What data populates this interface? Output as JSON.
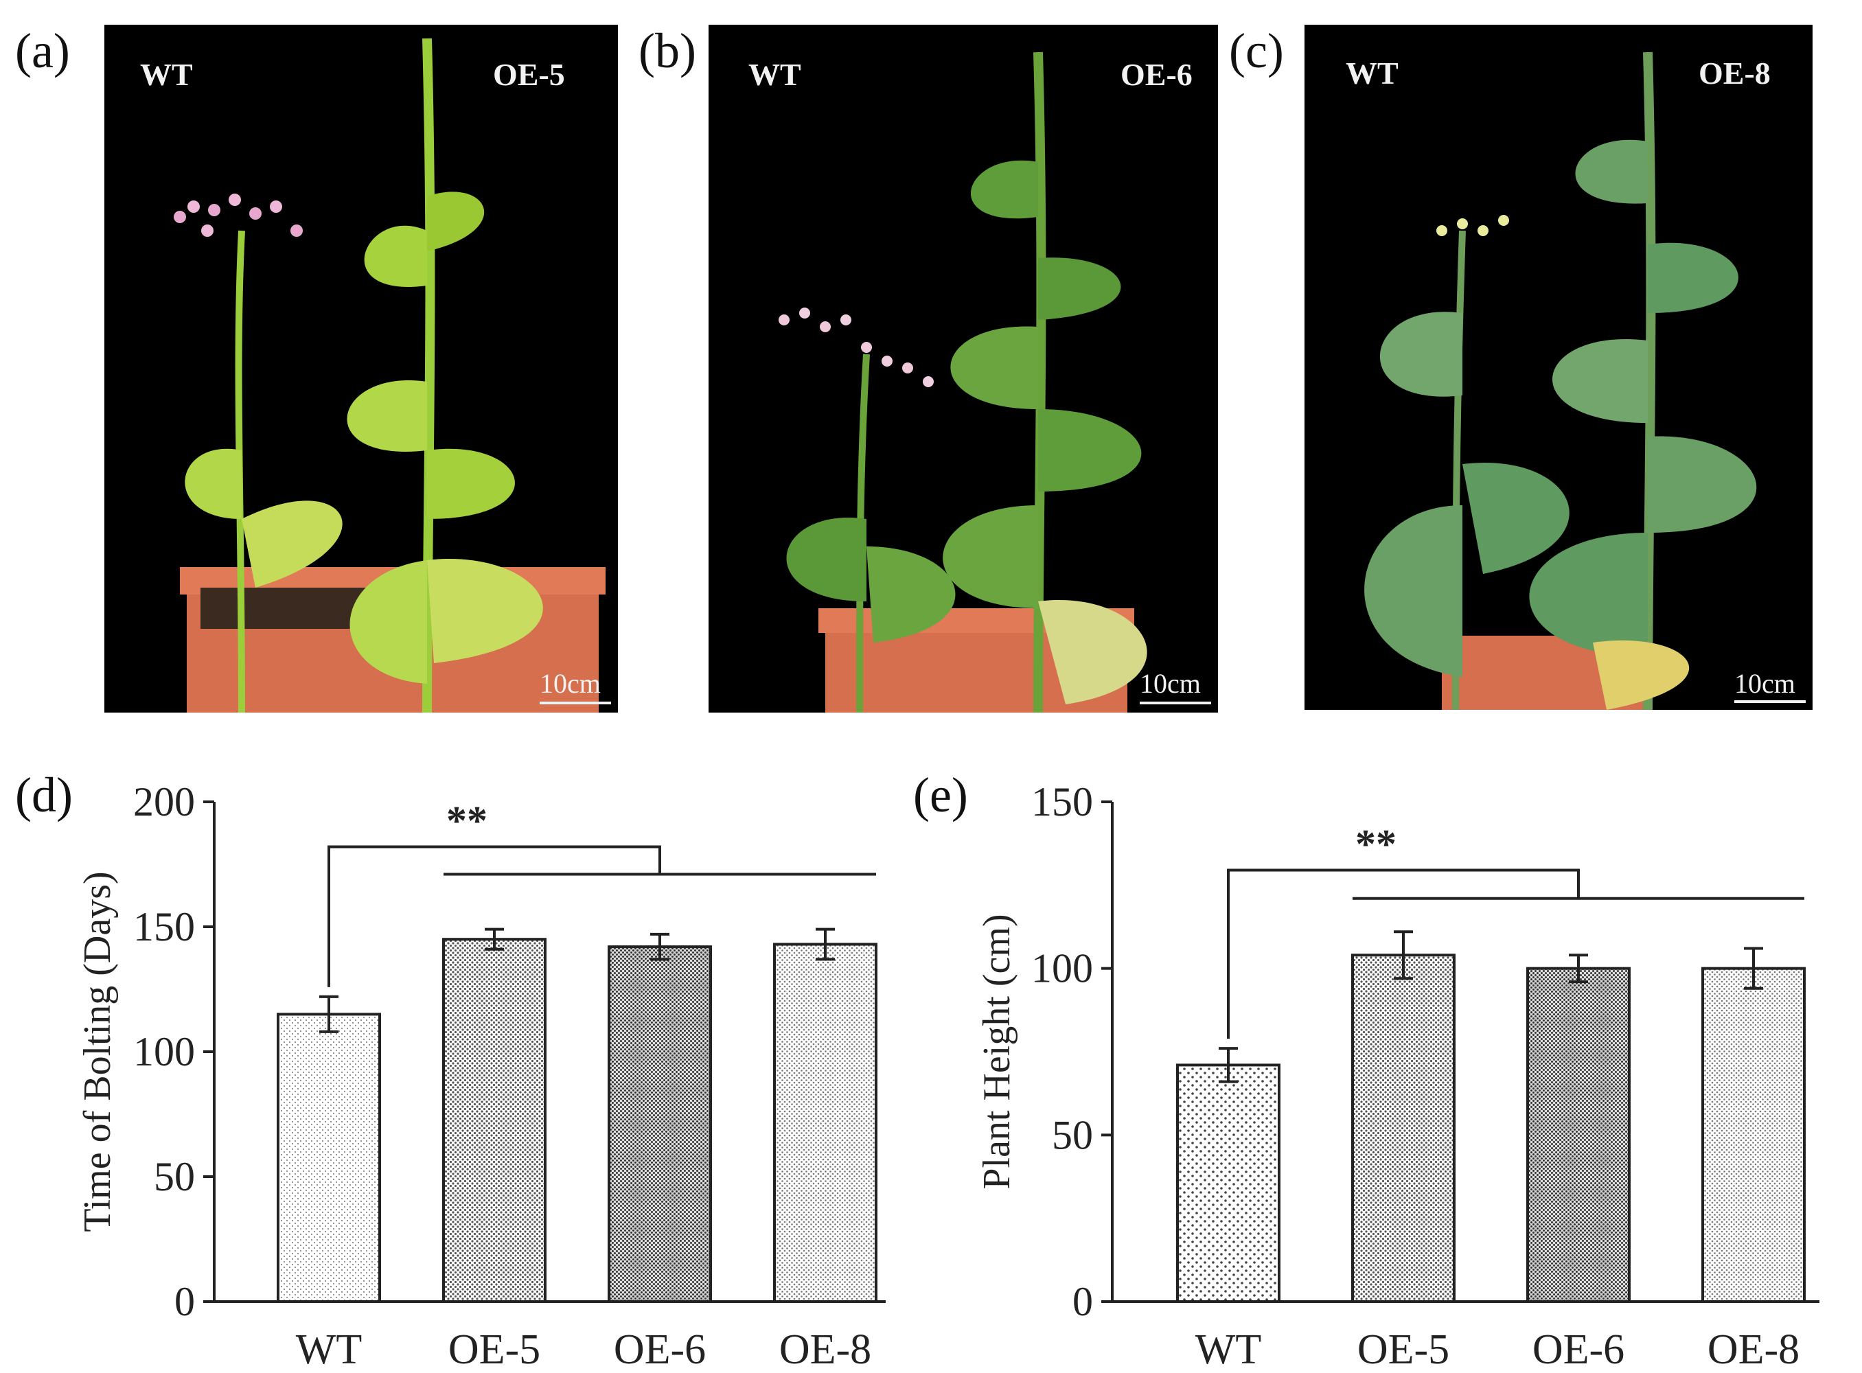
{
  "photos": [
    {
      "label": "(a)",
      "left_tag": "WT",
      "right_tag": "OE-5",
      "scale": "10cm"
    },
    {
      "label": "(b)",
      "left_tag": "WT",
      "right_tag": "OE-6",
      "scale": "10cm"
    },
    {
      "label": "(c)",
      "left_tag": "WT",
      "right_tag": "OE-8",
      "scale": "10cm"
    }
  ],
  "chart_data": [
    {
      "panel": "(d)",
      "type": "bar",
      "categories": [
        "WT",
        "OE-5",
        "OE-6",
        "OE-8"
      ],
      "values": [
        115,
        145,
        142,
        143
      ],
      "errors": [
        7,
        4,
        5,
        6
      ],
      "ylabel": "Time of Bolting (Days)",
      "xlabel": "",
      "ylim": [
        0,
        200
      ],
      "yticks": [
        0,
        50,
        100,
        150,
        200
      ],
      "significance": "**",
      "grid": false,
      "legend": "none"
    },
    {
      "panel": "(e)",
      "type": "bar",
      "categories": [
        "WT",
        "OE-5",
        "OE-6",
        "OE-8"
      ],
      "values": [
        71,
        104,
        100,
        100
      ],
      "errors": [
        5,
        7,
        4,
        6
      ],
      "ylabel": "Plant Height (cm)",
      "xlabel": "",
      "ylim": [
        0,
        150
      ],
      "yticks": [
        0,
        50,
        100,
        150
      ],
      "significance": "**",
      "grid": false,
      "legend": "none"
    }
  ]
}
